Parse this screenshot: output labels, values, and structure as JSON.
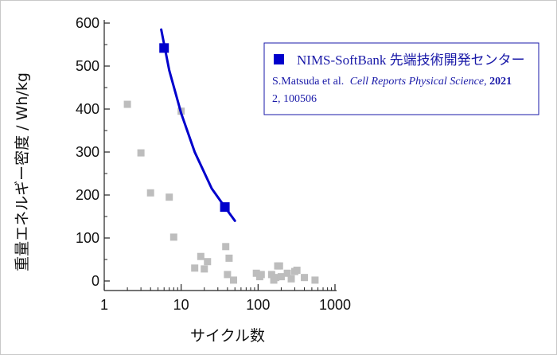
{
  "chart_data": {
    "type": "scatter",
    "xlabel": "サイクル数",
    "ylabel": "重量エネルギー密度 / Wh/kg",
    "x_scale": "log",
    "xlim": [
      1,
      1000
    ],
    "ylim": [
      0,
      600
    ],
    "x_ticks": [
      1,
      10,
      100,
      1000
    ],
    "x_tick_labels": [
      "1",
      "10",
      "100",
      "1000"
    ],
    "y_ticks": [
      0,
      100,
      200,
      300,
      400,
      500,
      600
    ],
    "y_tick_labels": [
      "0",
      "100",
      "200",
      "300",
      "400",
      "500",
      "600"
    ],
    "grid": false,
    "legend_position": "top-right",
    "legend": {
      "label": "NIMS-SoftBank 先端技術開発センター",
      "ref_authors": "S.Matsuda et al.",
      "ref_journal": "Cell Reports Physical Science",
      "ref_year": "2021",
      "ref_volume": ", 2, 100506"
    },
    "series": [
      {
        "name": "NIMS-SoftBank 先端技術開発センター",
        "color": "#0000cc",
        "marker": "square",
        "points": [
          [
            6,
            542
          ],
          [
            37,
            172
          ]
        ],
        "trend": [
          [
            5.5,
            585
          ],
          [
            7,
            490
          ],
          [
            10,
            390
          ],
          [
            15,
            300
          ],
          [
            25,
            215
          ],
          [
            37,
            172
          ],
          [
            50,
            140
          ]
        ]
      },
      {
        "color": "#bdbdbd",
        "marker": "square",
        "points": [
          [
            2,
            411
          ],
          [
            3,
            298
          ],
          [
            4,
            205
          ],
          [
            7,
            195
          ],
          [
            8,
            102
          ],
          [
            10,
            395
          ],
          [
            15,
            30
          ],
          [
            18,
            57
          ],
          [
            20,
            28
          ],
          [
            22,
            45
          ],
          [
            38,
            80
          ],
          [
            40,
            15
          ],
          [
            42,
            53
          ],
          [
            48,
            2
          ],
          [
            95,
            18
          ],
          [
            105,
            10
          ],
          [
            110,
            15
          ],
          [
            150,
            15
          ],
          [
            160,
            2
          ],
          [
            170,
            8
          ],
          [
            180,
            35
          ],
          [
            190,
            35
          ],
          [
            200,
            10
          ],
          [
            240,
            18
          ],
          [
            270,
            5
          ],
          [
            300,
            22
          ],
          [
            320,
            25
          ],
          [
            400,
            8
          ],
          [
            550,
            2
          ]
        ]
      }
    ]
  }
}
